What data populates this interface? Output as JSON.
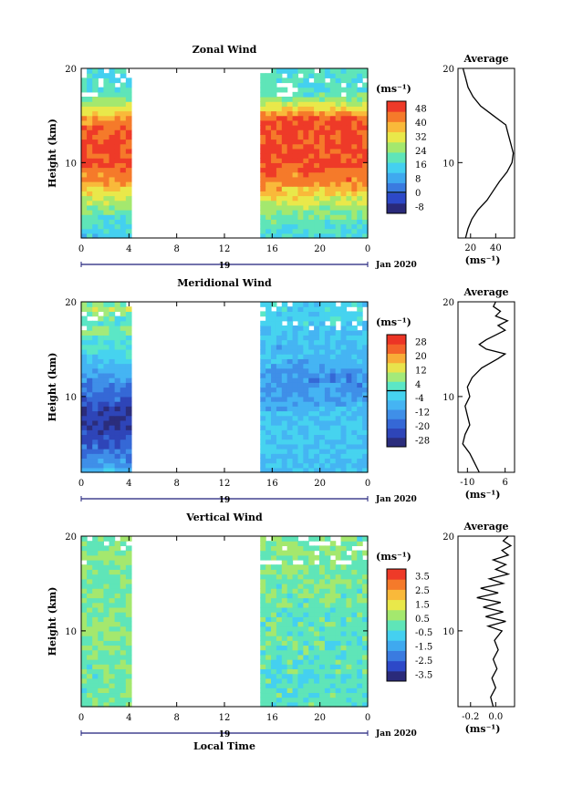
{
  "x_axis": {
    "ticks": [
      "0",
      "4",
      "8",
      "12",
      "16",
      "20",
      "0"
    ],
    "day_label": "19",
    "date_label": "Jan 2020",
    "xlabel": "Local Time"
  },
  "chart_data": [
    {
      "type": "heatmap",
      "title": "Zonal Wind",
      "ylabel": "Height (km)",
      "ylim": [
        2,
        20
      ],
      "y_ticks": [
        "10",
        "20"
      ],
      "xlim": [
        0,
        24
      ],
      "data_gap_hours": [
        4.2,
        15.0
      ],
      "colorbar": {
        "unit_label": "(ms⁻¹)",
        "ticks": [
          "48",
          "40",
          "32",
          "24",
          "16",
          "8",
          "0",
          "-8"
        ],
        "zero_line": true
      },
      "profiles": [
        {
          "segment": "early",
          "x_range": [
            0,
            4.2
          ],
          "levels": [
            {
              "h": 2,
              "v": 14
            },
            {
              "h": 4,
              "v": 18
            },
            {
              "h": 6,
              "v": 28
            },
            {
              "h": 8,
              "v": 40
            },
            {
              "h": 10,
              "v": 48
            },
            {
              "h": 12,
              "v": 48
            },
            {
              "h": 14,
              "v": 44
            },
            {
              "h": 15,
              "v": 38
            },
            {
              "h": 16,
              "v": 30
            },
            {
              "h": 17,
              "v": 22
            },
            {
              "h": 18,
              "v": 18
            },
            {
              "h": 20,
              "v": 16
            }
          ]
        },
        {
          "segment": "late",
          "x_range": [
            15,
            24
          ],
          "levels": [
            {
              "h": 2,
              "v": 16
            },
            {
              "h": 4,
              "v": 20
            },
            {
              "h": 6,
              "v": 30
            },
            {
              "h": 8,
              "v": 42
            },
            {
              "h": 10,
              "v": 48
            },
            {
              "h": 12,
              "v": 48
            },
            {
              "h": 14,
              "v": 48
            },
            {
              "h": 15,
              "v": 44
            },
            {
              "h": 16,
              "v": 30
            },
            {
              "h": 17,
              "v": 22
            },
            {
              "h": 18,
              "v": 18
            },
            {
              "h": 20,
              "v": 18
            }
          ]
        }
      ],
      "average": {
        "title": "Average",
        "xlabel": "(ms⁻¹)",
        "x_ticks": [
          20,
          40
        ],
        "xlim": [
          10,
          55
        ],
        "y_ticks": [
          "10",
          "20"
        ],
        "profile": [
          {
            "h": 2,
            "x": 16
          },
          {
            "h": 3,
            "x": 18
          },
          {
            "h": 4,
            "x": 21
          },
          {
            "h": 5,
            "x": 26
          },
          {
            "h": 6,
            "x": 33
          },
          {
            "h": 7,
            "x": 38
          },
          {
            "h": 8,
            "x": 43
          },
          {
            "h": 9,
            "x": 49
          },
          {
            "h": 10,
            "x": 53
          },
          {
            "h": 11,
            "x": 54
          },
          {
            "h": 12,
            "x": 52
          },
          {
            "h": 13,
            "x": 50
          },
          {
            "h": 14,
            "x": 48
          },
          {
            "h": 15,
            "x": 38
          },
          {
            "h": 16,
            "x": 28
          },
          {
            "h": 17,
            "x": 22
          },
          {
            "h": 18,
            "x": 18
          },
          {
            "h": 19,
            "x": 16
          },
          {
            "h": 20,
            "x": 14
          }
        ]
      }
    },
    {
      "type": "heatmap",
      "title": "Meridional Wind",
      "ylabel": "Height (km)",
      "ylim": [
        2,
        20
      ],
      "y_ticks": [
        "10",
        "20"
      ],
      "xlim": [
        0,
        24
      ],
      "data_gap_hours": [
        4.2,
        15.0
      ],
      "colorbar": {
        "unit_label": "(ms⁻¹)",
        "ticks": [
          "28",
          "20",
          "12",
          "4",
          "-4",
          "-12",
          "-20",
          "-28"
        ],
        "zero_line": true
      },
      "profiles": [
        {
          "segment": "early",
          "x_range": [
            0,
            4.2
          ],
          "levels": [
            {
              "h": 2,
              "v": -8
            },
            {
              "h": 4,
              "v": -16
            },
            {
              "h": 6,
              "v": -24
            },
            {
              "h": 8,
              "v": -28
            },
            {
              "h": 10,
              "v": -18
            },
            {
              "h": 12,
              "v": -12
            },
            {
              "h": 13,
              "v": -8
            },
            {
              "h": 14,
              "v": -4
            },
            {
              "h": 15,
              "v": 2
            },
            {
              "h": 16,
              "v": -2
            },
            {
              "h": 17,
              "v": 8
            },
            {
              "h": 18,
              "v": 0
            },
            {
              "h": 19,
              "v": 10
            },
            {
              "h": 20,
              "v": 4
            }
          ]
        },
        {
          "segment": "late",
          "x_range": [
            15,
            24
          ],
          "levels": [
            {
              "h": 2,
              "v": -6
            },
            {
              "h": 4,
              "v": -6
            },
            {
              "h": 6,
              "v": -4
            },
            {
              "h": 8,
              "v": -6
            },
            {
              "h": 10,
              "v": -10
            },
            {
              "h": 12,
              "v": -14
            },
            {
              "h": 13,
              "v": -10
            },
            {
              "h": 14,
              "v": -6
            },
            {
              "h": 15,
              "v": -8
            },
            {
              "h": 16,
              "v": -4
            },
            {
              "h": 17,
              "v": -6
            },
            {
              "h": 18,
              "v": -2
            },
            {
              "h": 19,
              "v": -4
            },
            {
              "h": 20,
              "v": -2
            }
          ]
        }
      ],
      "average": {
        "title": "Average",
        "xlabel": "(ms⁻¹)",
        "x_ticks": [
          -10,
          6
        ],
        "xlim": [
          -14,
          10
        ],
        "y_ticks": [
          "10",
          "20"
        ],
        "profile": [
          {
            "h": 2,
            "x": -5
          },
          {
            "h": 3,
            "x": -7
          },
          {
            "h": 4,
            "x": -9
          },
          {
            "h": 5,
            "x": -12
          },
          {
            "h": 6,
            "x": -11
          },
          {
            "h": 7,
            "x": -9
          },
          {
            "h": 8,
            "x": -10
          },
          {
            "h": 9,
            "x": -11
          },
          {
            "h": 10,
            "x": -9
          },
          {
            "h": 11,
            "x": -10
          },
          {
            "h": 12,
            "x": -8
          },
          {
            "h": 13,
            "x": -4
          },
          {
            "h": 14,
            "x": 3
          },
          {
            "h": 14.5,
            "x": 6
          },
          {
            "h": 15,
            "x": -2
          },
          {
            "h": 15.5,
            "x": -5
          },
          {
            "h": 16,
            "x": -2
          },
          {
            "h": 16.5,
            "x": 2
          },
          {
            "h": 17,
            "x": 6
          },
          {
            "h": 17.5,
            "x": 3
          },
          {
            "h": 18,
            "x": 7
          },
          {
            "h": 18.5,
            "x": 2
          },
          {
            "h": 19,
            "x": 4
          },
          {
            "h": 19.5,
            "x": 1
          },
          {
            "h": 20,
            "x": 2
          }
        ]
      }
    },
    {
      "type": "heatmap",
      "title": "Vertical Wind",
      "ylabel": "Height (km)",
      "ylim": [
        2,
        20
      ],
      "y_ticks": [
        "10",
        "20"
      ],
      "xlim": [
        0,
        24
      ],
      "data_gap_hours": [
        4.2,
        15.0
      ],
      "colorbar": {
        "unit_label": "(ms⁻¹)",
        "ticks": [
          "3.5",
          "2.5",
          "1.5",
          "0.5",
          "-0.5",
          "-1.5",
          "-2.5",
          "-3.5"
        ],
        "zero_line": false
      },
      "profiles": [
        {
          "segment": "early",
          "x_range": [
            0,
            4.2
          ],
          "levels": [
            {
              "h": 2,
              "v": 0.1
            },
            {
              "h": 6,
              "v": 0.2
            },
            {
              "h": 10,
              "v": 0.3
            },
            {
              "h": 14,
              "v": 0.2
            },
            {
              "h": 18,
              "v": 0.3
            },
            {
              "h": 20,
              "v": 0.2
            }
          ]
        },
        {
          "segment": "late",
          "x_range": [
            15,
            24
          ],
          "levels": [
            {
              "h": 2,
              "v": -0.2
            },
            {
              "h": 6,
              "v": -0.1
            },
            {
              "h": 10,
              "v": 0.0
            },
            {
              "h": 14,
              "v": 0.2
            },
            {
              "h": 18,
              "v": 0.3
            },
            {
              "h": 20,
              "v": 0.2
            }
          ]
        }
      ],
      "average": {
        "title": "Average",
        "xlabel": "(ms⁻¹)",
        "x_ticks": [
          -0.2,
          0.0
        ],
        "xlim": [
          -0.3,
          0.15
        ],
        "y_ticks": [
          "10",
          "20"
        ],
        "profile": [
          {
            "h": 2,
            "x": -0.02
          },
          {
            "h": 3,
            "x": -0.04
          },
          {
            "h": 4,
            "x": 0.0
          },
          {
            "h": 5,
            "x": -0.03
          },
          {
            "h": 6,
            "x": 0.01
          },
          {
            "h": 7,
            "x": -0.02
          },
          {
            "h": 8,
            "x": 0.02
          },
          {
            "h": 9,
            "x": -0.01
          },
          {
            "h": 10,
            "x": 0.05
          },
          {
            "h": 10.5,
            "x": -0.06
          },
          {
            "h": 11,
            "x": 0.08
          },
          {
            "h": 11.5,
            "x": -0.08
          },
          {
            "h": 12,
            "x": 0.06
          },
          {
            "h": 12.5,
            "x": -0.1
          },
          {
            "h": 13,
            "x": 0.04
          },
          {
            "h": 13.5,
            "x": -0.15
          },
          {
            "h": 14,
            "x": 0.02
          },
          {
            "h": 14.5,
            "x": -0.12
          },
          {
            "h": 15,
            "x": 0.06
          },
          {
            "h": 15.5,
            "x": -0.05
          },
          {
            "h": 16,
            "x": 0.1
          },
          {
            "h": 16.5,
            "x": 0.0
          },
          {
            "h": 17,
            "x": 0.08
          },
          {
            "h": 17.5,
            "x": -0.02
          },
          {
            "h": 18,
            "x": 0.1
          },
          {
            "h": 18.5,
            "x": 0.05
          },
          {
            "h": 19,
            "x": 0.12
          },
          {
            "h": 19.5,
            "x": 0.06
          },
          {
            "h": 20,
            "x": 0.1
          }
        ]
      }
    }
  ]
}
